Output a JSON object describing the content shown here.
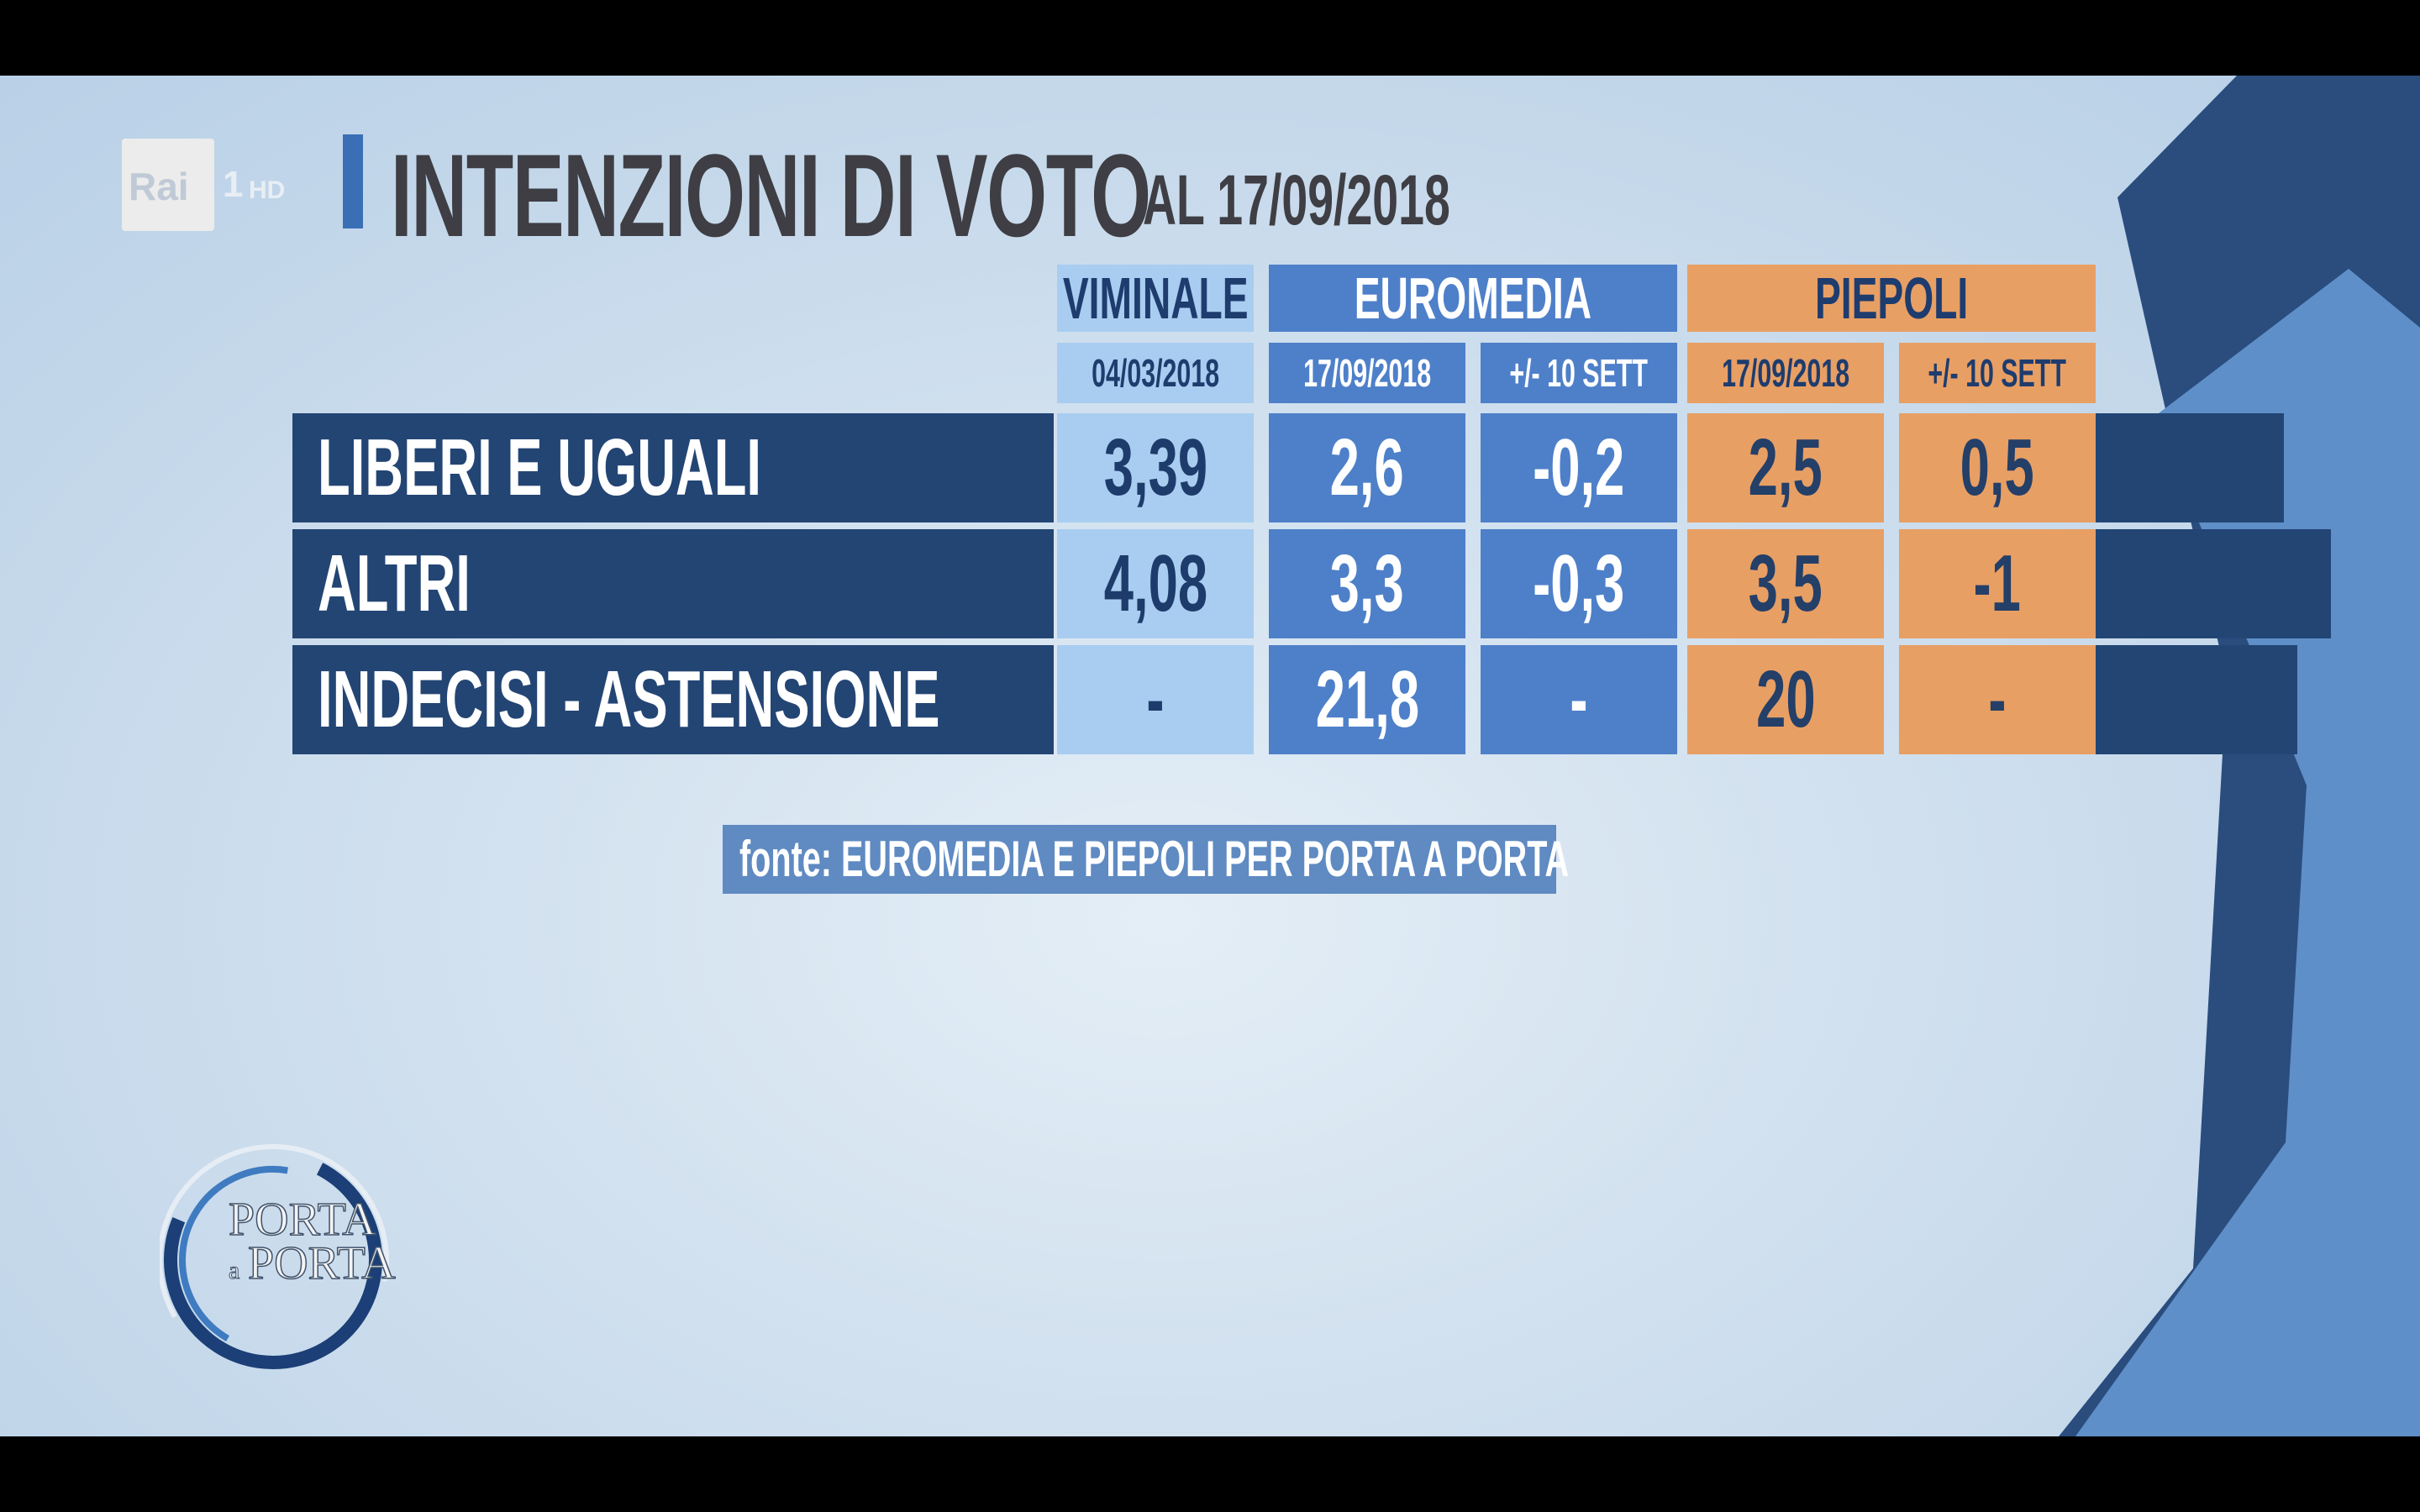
{
  "channel": {
    "logo_text": "Rai",
    "number": "1",
    "hd": "HD"
  },
  "title": "INTENZIONI DI VOTO",
  "subtitle": "AL 17/09/2018",
  "source": "fonte: EUROMEDIA E PIEPOLI PER PORTA A PORTA",
  "show_logo": {
    "line1": "PORTA",
    "connector": "a",
    "line2": "PORTA"
  },
  "colors": {
    "viminale": "#a9cdf0",
    "euromedia": "#4e80c9",
    "piepoli": "#e89f64",
    "row_label": "#234574"
  },
  "chart_data": {
    "type": "table",
    "title": "INTENZIONI DI VOTO",
    "subtitle": "AL 17/09/2018",
    "groups": [
      {
        "name": "VIMINALE",
        "columns": [
          "04/03/2018"
        ]
      },
      {
        "name": "EUROMEDIA",
        "columns": [
          "17/09/2018",
          "+/- 10 SETT"
        ]
      },
      {
        "name": "PIEPOLI",
        "columns": [
          "17/09/2018",
          "+/- 10 SETT"
        ]
      }
    ],
    "rows": [
      {
        "label": "LIBERI E UGUALI",
        "values": [
          "3,39",
          "2,6",
          "-0,2",
          "2,5",
          "0,5"
        ]
      },
      {
        "label": "ALTRI",
        "values": [
          "4,08",
          "3,3",
          "-0,3",
          "3,5",
          "-1"
        ]
      },
      {
        "label": "INDECISI - ASTENSIONE",
        "values": [
          "-",
          "21,8",
          "-",
          "20",
          "-"
        ]
      }
    ],
    "source": "fonte: EUROMEDIA E PIEPOLI PER PORTA A PORTA"
  }
}
